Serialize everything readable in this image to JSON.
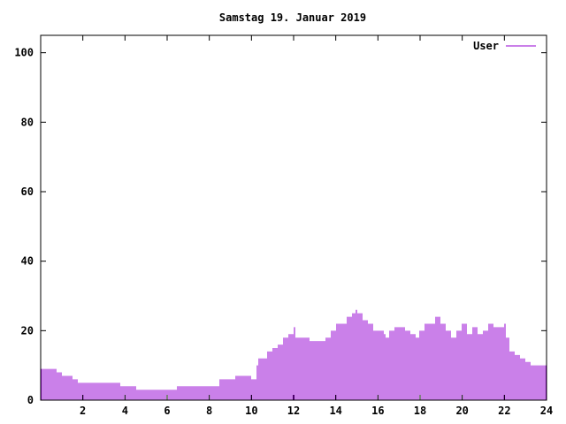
{
  "chart_data": {
    "type": "bar",
    "title": "Samstag 19. Januar 2019",
    "xlabel": "",
    "ylabel": "",
    "xlim": [
      0,
      24
    ],
    "ylim": [
      0,
      105
    ],
    "x_ticks": [
      "2",
      "4",
      "6",
      "8",
      "10",
      "12",
      "14",
      "16",
      "18",
      "20",
      "22",
      "24"
    ],
    "y_ticks": [
      "0",
      "20",
      "40",
      "60",
      "80",
      "100"
    ],
    "legend_position": "top-right",
    "grid": false,
    "series": [
      {
        "name": "User",
        "color": "#9400d3",
        "values": [
          {
            "x": 0.0,
            "y": 9
          },
          {
            "x": 0.5,
            "y": 9
          },
          {
            "x": 0.75,
            "y": 8
          },
          {
            "x": 1.0,
            "y": 7
          },
          {
            "x": 1.25,
            "y": 7
          },
          {
            "x": 1.5,
            "y": 6
          },
          {
            "x": 1.75,
            "y": 5
          },
          {
            "x": 2.0,
            "y": 5
          },
          {
            "x": 2.5,
            "y": 5
          },
          {
            "x": 3.0,
            "y": 5
          },
          {
            "x": 3.5,
            "y": 5
          },
          {
            "x": 3.75,
            "y": 4
          },
          {
            "x": 4.0,
            "y": 4
          },
          {
            "x": 4.5,
            "y": 3
          },
          {
            "x": 5.0,
            "y": 3
          },
          {
            "x": 5.5,
            "y": 3
          },
          {
            "x": 6.0,
            "y": 3
          },
          {
            "x": 6.5,
            "y": 4
          },
          {
            "x": 7.0,
            "y": 4
          },
          {
            "x": 7.5,
            "y": 4
          },
          {
            "x": 8.0,
            "y": 4
          },
          {
            "x": 8.5,
            "y": 6
          },
          {
            "x": 9.0,
            "y": 6
          },
          {
            "x": 9.25,
            "y": 7
          },
          {
            "x": 9.75,
            "y": 7
          },
          {
            "x": 10.0,
            "y": 6
          },
          {
            "x": 10.25,
            "y": 10
          },
          {
            "x": 10.3,
            "y": 12
          },
          {
            "x": 10.5,
            "y": 12
          },
          {
            "x": 10.75,
            "y": 14
          },
          {
            "x": 11.0,
            "y": 15
          },
          {
            "x": 11.25,
            "y": 16
          },
          {
            "x": 11.5,
            "y": 18
          },
          {
            "x": 11.75,
            "y": 19
          },
          {
            "x": 12.0,
            "y": 21
          },
          {
            "x": 12.1,
            "y": 18
          },
          {
            "x": 12.5,
            "y": 18
          },
          {
            "x": 12.75,
            "y": 17
          },
          {
            "x": 13.0,
            "y": 17
          },
          {
            "x": 13.5,
            "y": 18
          },
          {
            "x": 13.75,
            "y": 20
          },
          {
            "x": 14.0,
            "y": 22
          },
          {
            "x": 14.25,
            "y": 22
          },
          {
            "x": 14.5,
            "y": 24
          },
          {
            "x": 14.75,
            "y": 25
          },
          {
            "x": 14.9,
            "y": 26
          },
          {
            "x": 15.0,
            "y": 25
          },
          {
            "x": 15.25,
            "y": 23
          },
          {
            "x": 15.5,
            "y": 22
          },
          {
            "x": 15.75,
            "y": 20
          },
          {
            "x": 16.0,
            "y": 20
          },
          {
            "x": 16.25,
            "y": 19
          },
          {
            "x": 16.4,
            "y": 18
          },
          {
            "x": 16.5,
            "y": 20
          },
          {
            "x": 16.75,
            "y": 21
          },
          {
            "x": 17.0,
            "y": 21
          },
          {
            "x": 17.25,
            "y": 20
          },
          {
            "x": 17.5,
            "y": 19
          },
          {
            "x": 17.75,
            "y": 18
          },
          {
            "x": 18.0,
            "y": 20
          },
          {
            "x": 18.25,
            "y": 22
          },
          {
            "x": 18.5,
            "y": 22
          },
          {
            "x": 18.75,
            "y": 24
          },
          {
            "x": 19.0,
            "y": 22
          },
          {
            "x": 19.25,
            "y": 20
          },
          {
            "x": 19.5,
            "y": 18
          },
          {
            "x": 19.75,
            "y": 20
          },
          {
            "x": 20.0,
            "y": 22
          },
          {
            "x": 20.25,
            "y": 19
          },
          {
            "x": 20.5,
            "y": 21
          },
          {
            "x": 20.75,
            "y": 19
          },
          {
            "x": 21.0,
            "y": 20
          },
          {
            "x": 21.25,
            "y": 22
          },
          {
            "x": 21.5,
            "y": 21
          },
          {
            "x": 21.75,
            "y": 21
          },
          {
            "x": 22.0,
            "y": 22
          },
          {
            "x": 22.1,
            "y": 18
          },
          {
            "x": 22.25,
            "y": 14
          },
          {
            "x": 22.5,
            "y": 13
          },
          {
            "x": 22.75,
            "y": 12
          },
          {
            "x": 23.0,
            "y": 11
          },
          {
            "x": 23.25,
            "y": 10
          },
          {
            "x": 23.5,
            "y": 10
          },
          {
            "x": 24.0,
            "y": 10
          }
        ]
      }
    ]
  }
}
